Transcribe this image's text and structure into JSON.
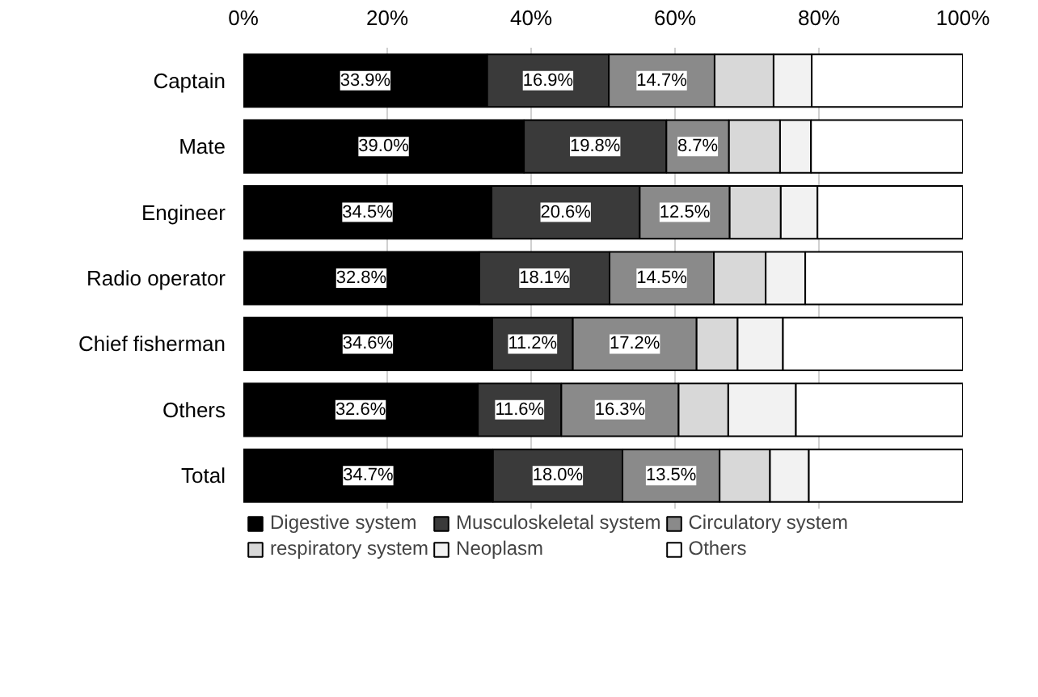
{
  "chart_data": {
    "type": "bar",
    "orientation": "horizontal",
    "stacked": true,
    "categories": [
      "Captain",
      "Mate",
      "Engineer",
      "Radio operator",
      "Chief fisherman",
      "Others",
      "Total"
    ],
    "series": [
      {
        "name": "Digestive system",
        "color": "#000000",
        "values": [
          33.9,
          39.0,
          34.5,
          32.8,
          34.6,
          32.6,
          34.7
        ],
        "value_labels": [
          "33.9%",
          "39.0%",
          "34.5%",
          "32.8%",
          "34.6%",
          "32.6%",
          "34.7%"
        ]
      },
      {
        "name": "Musculoskeletal system",
        "color": "#3a3a3a",
        "values": [
          16.9,
          19.8,
          20.6,
          18.1,
          11.2,
          11.6,
          18.0
        ],
        "value_labels": [
          "16.9%",
          "19.8%",
          "20.6%",
          "18.1%",
          "11.2%",
          "11.6%",
          "18.0%"
        ]
      },
      {
        "name": "Circulatory system",
        "color": "#8a8a8a",
        "values": [
          14.7,
          8.7,
          12.5,
          14.5,
          17.2,
          16.3,
          13.5
        ],
        "value_labels": [
          "14.7%",
          "8.7%",
          "12.5%",
          "14.5%",
          "17.2%",
          "16.3%",
          "13.5%"
        ]
      },
      {
        "name": "respiratory system",
        "color": "#d8d8d8",
        "values": [
          8.2,
          7.1,
          7.1,
          7.2,
          5.7,
          6.9,
          7.0
        ]
      },
      {
        "name": "Neoplasm",
        "color": "#f2f2f2",
        "values": [
          5.3,
          4.3,
          5.1,
          5.5,
          6.3,
          9.4,
          5.4
        ]
      },
      {
        "name": "Others",
        "color": "#ffffff",
        "values": [
          21.1,
          21.1,
          20.2,
          21.9,
          25.0,
          23.2,
          21.4
        ]
      }
    ],
    "xlim": [
      0,
      100
    ],
    "xticks": [
      {
        "value": 0,
        "label": "0%"
      },
      {
        "value": 20,
        "label": "20%"
      },
      {
        "value": 40,
        "label": "40%"
      },
      {
        "value": 60,
        "label": "60%"
      },
      {
        "value": 80,
        "label": "80%"
      },
      {
        "value": 100,
        "label": "100%"
      }
    ],
    "grid": "x",
    "legend": "bottom"
  }
}
